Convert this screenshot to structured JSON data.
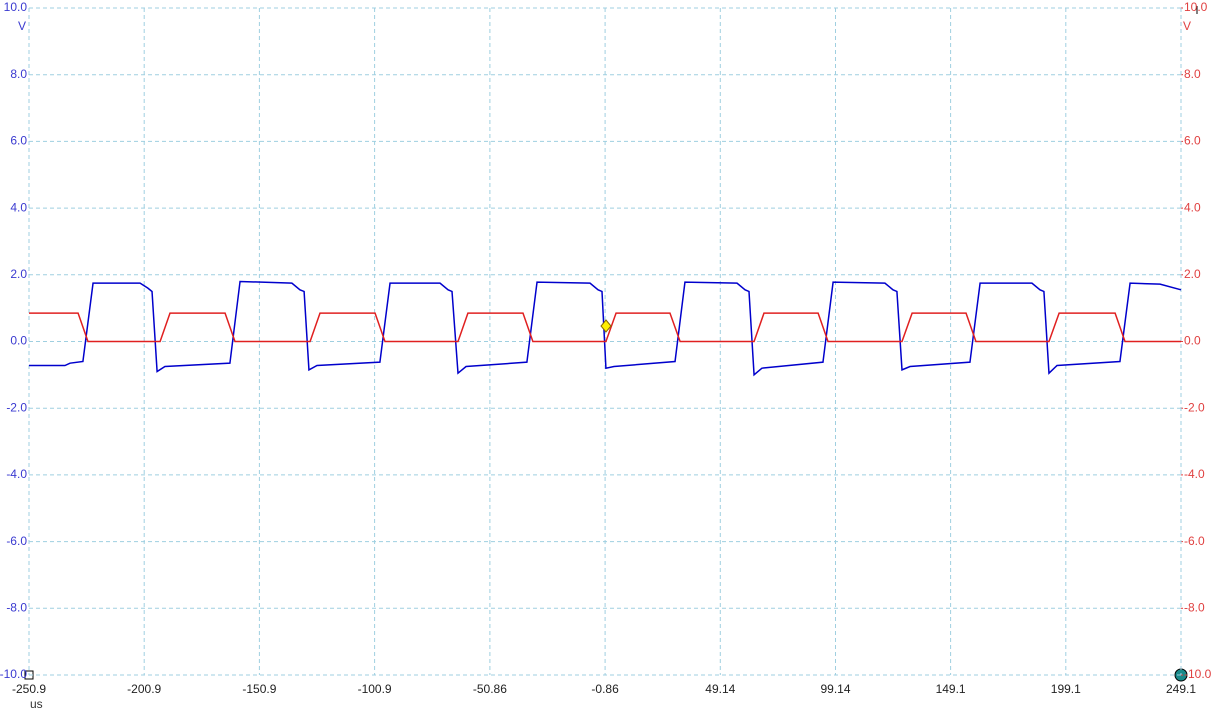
{
  "chart_data": {
    "type": "line",
    "x_unit": "us",
    "y_unit": "V",
    "y2_unit": "V",
    "xlim": [
      -250.9,
      249.1
    ],
    "xticks": [
      -250.9,
      -200.9,
      -150.9,
      -100.9,
      -50.86,
      -0.86,
      49.14,
      99.14,
      149.1,
      199.1,
      249.1
    ],
    "ylim": [
      -10,
      10
    ],
    "yticks": [
      {
        "value": 10,
        "label": "10.0"
      },
      {
        "value": 8,
        "label": "8.0"
      },
      {
        "value": 6,
        "label": "6.0"
      },
      {
        "value": 4,
        "label": "4.0"
      },
      {
        "value": 2,
        "label": "2.0"
      },
      {
        "value": 0,
        "label": "0.0"
      },
      {
        "value": -2,
        "label": "-2.0"
      },
      {
        "value": -4,
        "label": "-4.0"
      },
      {
        "value": -6,
        "label": "-6.0"
      },
      {
        "value": -8,
        "label": "-8.0"
      },
      {
        "value": -10,
        "label": "-10.0"
      }
    ],
    "y2lim": [
      -10,
      10
    ],
    "y2ticks": [
      {
        "value": 10,
        "label": "10.0"
      },
      {
        "value": 8,
        "label": "8.0"
      },
      {
        "value": 6,
        "label": "6.0"
      },
      {
        "value": 4,
        "label": "4.0"
      },
      {
        "value": 2,
        "label": "2.0"
      },
      {
        "value": 0,
        "label": "0.0"
      },
      {
        "value": -2,
        "label": "-2.0"
      },
      {
        "value": -4,
        "label": "-4.0"
      },
      {
        "value": -6,
        "label": "-6.0"
      },
      {
        "value": -8,
        "label": "-8.0"
      },
      {
        "value": -10,
        "label": "-10.0"
      }
    ],
    "grid": true,
    "series": [
      {
        "color": "#0000cc",
        "axis": "y",
        "x": [
          -250.9,
          -235.3,
          -233.1,
          -227.5,
          -223.1,
          -202.7,
          -199.3,
          -197.5,
          -195.3,
          -191.9,
          -163.7,
          -159.3,
          -136.8,
          -133.3,
          -131.5,
          -129.4,
          -125.9,
          -98.6,
          -94.2,
          -72.5,
          -69.0,
          -67.3,
          -64.7,
          -61.2,
          -34.8,
          -30.4,
          -7.4,
          -3.9,
          -2.2,
          -0.5,
          3.0,
          29.5,
          33.8,
          56.4,
          59.9,
          61.6,
          63.8,
          67.2,
          93.7,
          98.1,
          120.6,
          124.1,
          125.8,
          128.0,
          131.5,
          157.5,
          161.9,
          184.4,
          187.9,
          189.6,
          191.8,
          195.3,
          222.6,
          227.0,
          240.0,
          249.1
        ],
        "values": [
          -0.72,
          -0.72,
          -0.65,
          -0.6,
          1.75,
          1.75,
          1.6,
          1.5,
          -0.9,
          -0.75,
          -0.65,
          1.8,
          1.75,
          1.55,
          1.5,
          -0.85,
          -0.72,
          -0.62,
          1.75,
          1.75,
          1.55,
          1.5,
          -0.95,
          -0.75,
          -0.62,
          1.78,
          1.75,
          1.55,
          1.5,
          -0.8,
          -0.75,
          -0.6,
          1.78,
          1.75,
          1.55,
          1.5,
          -1.0,
          -0.8,
          -0.62,
          1.78,
          1.75,
          1.55,
          1.5,
          -0.85,
          -0.75,
          -0.62,
          1.75,
          1.75,
          1.55,
          1.5,
          -0.95,
          -0.72,
          -0.6,
          1.75,
          1.72,
          1.55
        ]
      },
      {
        "color": "#e02020",
        "axis": "y2",
        "x": [
          -250.9,
          -229.6,
          -225.3,
          -194.0,
          -189.7,
          -165.8,
          -161.5,
          -128.9,
          -124.6,
          -100.7,
          -96.4,
          -64.7,
          -60.4,
          -36.5,
          -32.2,
          -0.5,
          3.9,
          27.3,
          31.7,
          63.8,
          68.1,
          91.6,
          95.9,
          128.0,
          132.4,
          155.8,
          160.1,
          191.8,
          196.2,
          220.5,
          224.8,
          249.1
        ],
        "values": [
          0.85,
          0.85,
          0,
          0,
          0.85,
          0.85,
          0,
          0,
          0.85,
          0.85,
          0,
          0,
          0.85,
          0.85,
          0,
          0,
          0.85,
          0.85,
          0,
          0,
          0.85,
          0.85,
          0,
          0,
          0.85,
          0.85,
          0,
          0,
          0.85,
          0.85,
          0,
          0
        ]
      }
    ]
  }
}
